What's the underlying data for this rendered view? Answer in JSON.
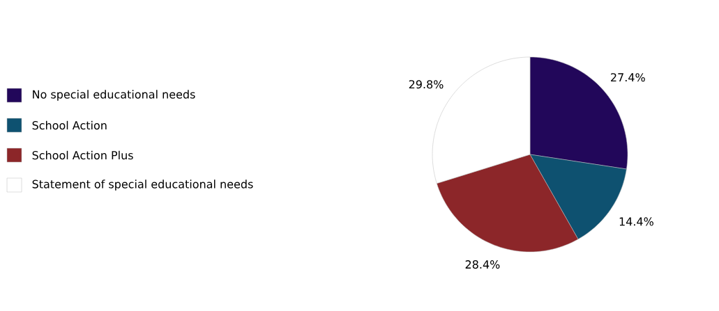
{
  "chart_data": {
    "type": "pie",
    "categories": [
      "No special educational needs",
      "School Action",
      "School Action Plus",
      "Statement of special educational needs"
    ],
    "values": [
      27.4,
      14.4,
      28.4,
      29.8
    ],
    "value_labels": [
      "27.4%",
      "14.4%",
      "28.4%",
      "29.8%"
    ],
    "colors": [
      "#22075a",
      "#0e5170",
      "#8c2629",
      "#ffffff"
    ],
    "legend": "left"
  }
}
